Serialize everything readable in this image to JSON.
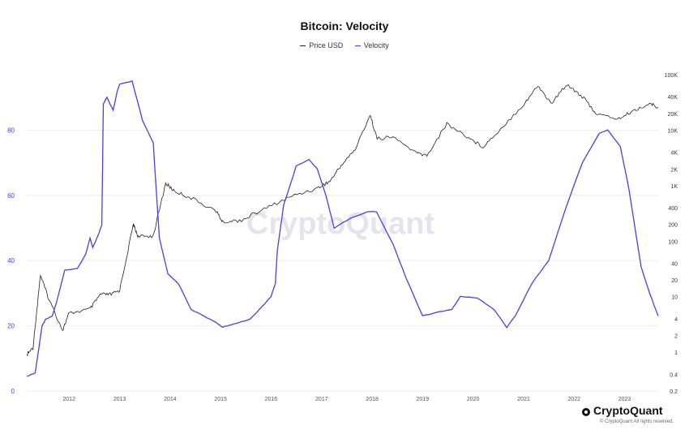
{
  "chart_data": {
    "type": "line",
    "title": "Bitcoin: Velocity",
    "legend": {
      "placement": "top-center",
      "entries": [
        "Price USD",
        "Velocity"
      ]
    },
    "colors": {
      "price": "#222222",
      "velocity": "#4b3fe0"
    },
    "grid": true,
    "x_ticks": [
      "2012",
      "2013",
      "2014",
      "2015",
      "2016",
      "2017",
      "2018",
      "2019",
      "2020",
      "2021",
      "2022",
      "2023"
    ],
    "xlim": [
      "2011-03-01",
      "2023-09-01"
    ],
    "y_left": {
      "ticks": [
        0,
        20,
        40,
        60,
        80
      ],
      "ylim": [
        0,
        97
      ]
    },
    "y_right": {
      "scale": "log",
      "ticks": [
        "0.2",
        "0.4",
        "1",
        "2",
        "4",
        "10",
        "20",
        "40",
        "100",
        "200",
        "400",
        "1K",
        "2K",
        "4K",
        "10K",
        "20K",
        "40K",
        "100K"
      ],
      "tick_values": [
        0.2,
        0.4,
        1,
        2,
        4,
        10,
        20,
        40,
        100,
        200,
        400,
        1000,
        2000,
        4000,
        10000,
        20000,
        40000,
        100000
      ],
      "ylim": [
        0.2,
        100000
      ]
    },
    "series": [
      {
        "name": "Velocity",
        "axis": "left",
        "points": [
          [
            "2011-03-01",
            4.5
          ],
          [
            "2011-05-01",
            5.5
          ],
          [
            "2011-06-20",
            20
          ],
          [
            "2011-07-15",
            22
          ],
          [
            "2011-09-01",
            23
          ],
          [
            "2011-10-01",
            27
          ],
          [
            "2011-12-01",
            37
          ],
          [
            "2012-03-01",
            37.5
          ],
          [
            "2012-05-01",
            42
          ],
          [
            "2012-06-01",
            47
          ],
          [
            "2012-06-20",
            44
          ],
          [
            "2012-07-01",
            45
          ],
          [
            "2012-08-01",
            48
          ],
          [
            "2012-08-25",
            51
          ],
          [
            "2012-09-05",
            88
          ],
          [
            "2012-10-01",
            90
          ],
          [
            "2012-11-15",
            86
          ],
          [
            "2012-12-15",
            92
          ],
          [
            "2013-01-01",
            94
          ],
          [
            "2013-04-01",
            95
          ],
          [
            "2013-06-15",
            83
          ],
          [
            "2013-09-01",
            76
          ],
          [
            "2013-10-15",
            47
          ],
          [
            "2013-12-15",
            36
          ],
          [
            "2014-03-01",
            33
          ],
          [
            "2014-06-01",
            25
          ],
          [
            "2014-09-01",
            23
          ],
          [
            "2014-12-01",
            21
          ],
          [
            "2015-01-15",
            19.5
          ],
          [
            "2015-04-01",
            20.5
          ],
          [
            "2015-08-01",
            22
          ],
          [
            "2015-11-01",
            26
          ],
          [
            "2016-01-01",
            29
          ],
          [
            "2016-02-01",
            33
          ],
          [
            "2016-02-15",
            43
          ],
          [
            "2016-04-01",
            57
          ],
          [
            "2016-07-01",
            69
          ],
          [
            "2016-10-01",
            71
          ],
          [
            "2016-12-01",
            68
          ],
          [
            "2017-02-01",
            60
          ],
          [
            "2017-04-01",
            50
          ],
          [
            "2017-08-01",
            53
          ],
          [
            "2017-12-01",
            55
          ],
          [
            "2018-02-01",
            55
          ],
          [
            "2018-06-01",
            45
          ],
          [
            "2018-09-01",
            35
          ],
          [
            "2019-01-01",
            23
          ],
          [
            "2019-04-01",
            24
          ],
          [
            "2019-08-01",
            25
          ],
          [
            "2019-10-01",
            29
          ],
          [
            "2020-02-01",
            28.5
          ],
          [
            "2020-06-01",
            25
          ],
          [
            "2020-09-01",
            19.5
          ],
          [
            "2020-11-01",
            23
          ],
          [
            "2021-03-01",
            33
          ],
          [
            "2021-07-01",
            40
          ],
          [
            "2021-11-01",
            56
          ],
          [
            "2022-03-01",
            70
          ],
          [
            "2022-07-01",
            79
          ],
          [
            "2022-09-01",
            80
          ],
          [
            "2022-12-01",
            75
          ],
          [
            "2023-02-01",
            62
          ],
          [
            "2023-05-01",
            38
          ],
          [
            "2023-07-01",
            30
          ],
          [
            "2023-09-01",
            23
          ]
        ]
      },
      {
        "name": "Price USD",
        "axis": "right",
        "points": [
          [
            "2011-03-01",
            0.9
          ],
          [
            "2011-04-15",
            1.2
          ],
          [
            "2011-06-08",
            25
          ],
          [
            "2011-08-01",
            10
          ],
          [
            "2011-11-15",
            2.5
          ],
          [
            "2012-01-01",
            5
          ],
          [
            "2012-06-01",
            6
          ],
          [
            "2012-08-15",
            11
          ],
          [
            "2012-11-01",
            11
          ],
          [
            "2013-01-01",
            13
          ],
          [
            "2013-04-10",
            200
          ],
          [
            "2013-05-15",
            120
          ],
          [
            "2013-09-01",
            125
          ],
          [
            "2013-11-30",
            1100
          ],
          [
            "2014-02-01",
            800
          ],
          [
            "2014-06-01",
            600
          ],
          [
            "2014-12-01",
            350
          ],
          [
            "2015-01-15",
            220
          ],
          [
            "2015-06-01",
            240
          ],
          [
            "2015-12-01",
            400
          ],
          [
            "2016-06-01",
            650
          ],
          [
            "2016-12-01",
            900
          ],
          [
            "2017-03-01",
            1200
          ],
          [
            "2017-06-01",
            2500
          ],
          [
            "2017-09-01",
            4500
          ],
          [
            "2017-12-17",
            19000
          ],
          [
            "2018-02-06",
            7000
          ],
          [
            "2018-06-01",
            7500
          ],
          [
            "2018-11-25",
            3800
          ],
          [
            "2019-02-01",
            3500
          ],
          [
            "2019-06-26",
            13000
          ],
          [
            "2019-12-01",
            7300
          ],
          [
            "2020-03-12",
            5000
          ],
          [
            "2020-07-01",
            9500
          ],
          [
            "2020-12-31",
            29000
          ],
          [
            "2021-04-14",
            63000
          ],
          [
            "2021-07-20",
            30000
          ],
          [
            "2021-11-10",
            68000
          ],
          [
            "2022-03-01",
            40000
          ],
          [
            "2022-06-18",
            19000
          ],
          [
            "2022-11-21",
            16000
          ],
          [
            "2023-03-01",
            22000
          ],
          [
            "2023-07-01",
            30000
          ],
          [
            "2023-09-01",
            26000
          ]
        ]
      }
    ]
  },
  "watermark": "CryptoQuant",
  "brand": {
    "name": "CryptoQuant",
    "copyright": "© CryptoQuant All rights reserved."
  }
}
